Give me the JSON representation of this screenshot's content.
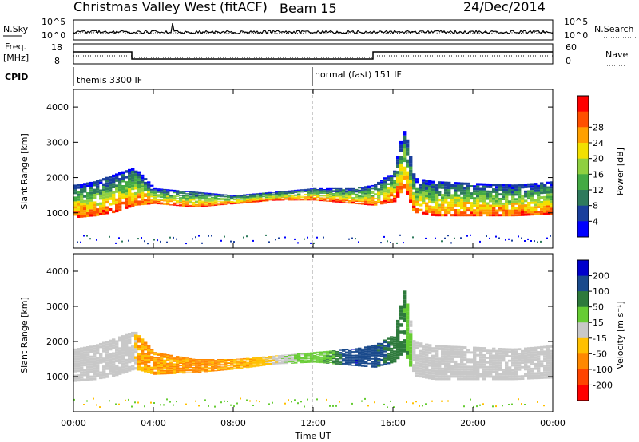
{
  "header": {
    "title": "Christmas Valley West (fitACF)",
    "beam": "Beam 15",
    "date": "24/Dec/2014"
  },
  "strip": {
    "nsky_label": "N.Sky",
    "nsky_ticks": [
      "10^5",
      "10^0"
    ],
    "nsearch_label": "N.Search",
    "nsearch_ticks": [
      "10^5",
      "10^0"
    ],
    "freq_label": "Freq.",
    "freq_unit": "[MHz]",
    "freq_ticks": [
      "18",
      "8"
    ],
    "nave_label": "Nave",
    "nave_ticks": [
      "60",
      "0"
    ],
    "cpid_label": "CPID",
    "cpid_modes": [
      {
        "name": "themis 3300 IF",
        "start_hour": 0
      },
      {
        "name": "normal (fast) 151 IF",
        "start_hour": 12
      }
    ]
  },
  "x_axis": {
    "label": "Time UT",
    "ticks": [
      "00:00",
      "04:00",
      "08:00",
      "12:00",
      "16:00",
      "20:00",
      "00:00"
    ],
    "range_hours": [
      0,
      24
    ]
  },
  "chart_data": [
    {
      "type": "heatmap",
      "name": "power-panel",
      "ylabel": "Slant Range [km]",
      "yticks": [
        "1000",
        "2000",
        "3000",
        "4000"
      ],
      "ylim": [
        0,
        4500
      ],
      "xlim_hours": [
        0,
        24
      ],
      "colorbar": {
        "label": "Power [dB]",
        "ticks": [
          "4",
          "8",
          "12",
          "16",
          "20",
          "24",
          "28"
        ],
        "colors": [
          "#0000ff",
          "#1a3f9c",
          "#2e7a5c",
          "#44aa44",
          "#8fd040",
          "#f2e000",
          "#ffa000",
          "#ff5000",
          "#ff0000"
        ]
      },
      "band_lower_km": [
        [
          0,
          850
        ],
        [
          1,
          900
        ],
        [
          2,
          1000
        ],
        [
          3,
          1200
        ],
        [
          4,
          1250
        ],
        [
          6,
          1150
        ],
        [
          8,
          1250
        ],
        [
          10,
          1350
        ],
        [
          12,
          1350
        ],
        [
          14,
          1250
        ],
        [
          15,
          1200
        ],
        [
          16,
          1300
        ],
        [
          16.5,
          1700
        ],
        [
          17,
          1000
        ],
        [
          18,
          900
        ],
        [
          20,
          900
        ],
        [
          22,
          900
        ],
        [
          24,
          950
        ]
      ],
      "band_upper_km": [
        [
          0,
          1800
        ],
        [
          1,
          1900
        ],
        [
          2,
          2100
        ],
        [
          3,
          2300
        ],
        [
          4,
          1700
        ],
        [
          6,
          1600
        ],
        [
          8,
          1500
        ],
        [
          10,
          1600
        ],
        [
          12,
          1700
        ],
        [
          14,
          1700
        ],
        [
          15,
          1800
        ],
        [
          16,
          2200
        ],
        [
          16.5,
          3500
        ],
        [
          17,
          2000
        ],
        [
          18,
          1900
        ],
        [
          20,
          1850
        ],
        [
          22,
          1800
        ],
        [
          24,
          1900
        ]
      ]
    },
    {
      "type": "heatmap",
      "name": "velocity-panel",
      "ylabel": "Slant Range [km]",
      "yticks": [
        "1000",
        "2000",
        "3000",
        "4000"
      ],
      "ylim": [
        0,
        4500
      ],
      "xlim_hours": [
        0,
        24
      ],
      "colorbar": {
        "label": "Velocity [m s⁻¹]",
        "ticks": [
          "200",
          "100",
          "50",
          "15",
          "-15",
          "-50",
          "-100",
          "-200"
        ],
        "colors": [
          "#0000cc",
          "#1a4a8c",
          "#2e7a3c",
          "#66cc33",
          "#c8c8c8",
          "#ffc000",
          "#ff8800",
          "#ff4400",
          "#ff0000"
        ]
      },
      "band_lower_km": [
        [
          0,
          850
        ],
        [
          1,
          900
        ],
        [
          2,
          1000
        ],
        [
          3,
          1200
        ],
        [
          4,
          1050
        ],
        [
          6,
          1100
        ],
        [
          8,
          1200
        ],
        [
          10,
          1350
        ],
        [
          12,
          1400
        ],
        [
          14,
          1300
        ],
        [
          15,
          1250
        ],
        [
          16,
          1400
        ],
        [
          16.5,
          1700
        ],
        [
          17,
          1000
        ],
        [
          18,
          900
        ],
        [
          20,
          900
        ],
        [
          22,
          900
        ],
        [
          24,
          950
        ]
      ],
      "band_upper_km": [
        [
          0,
          1800
        ],
        [
          1,
          1900
        ],
        [
          2,
          2100
        ],
        [
          3,
          2300
        ],
        [
          4,
          1700
        ],
        [
          6,
          1500
        ],
        [
          8,
          1500
        ],
        [
          10,
          1600
        ],
        [
          12,
          1700
        ],
        [
          14,
          1800
        ],
        [
          15,
          1900
        ],
        [
          16,
          2200
        ],
        [
          16.5,
          3500
        ],
        [
          17,
          2000
        ],
        [
          18,
          1900
        ],
        [
          20,
          1850
        ],
        [
          22,
          1800
        ],
        [
          24,
          1900
        ]
      ],
      "velocity_by_time": [
        [
          0,
          0
        ],
        [
          3,
          0
        ],
        [
          3.2,
          -50
        ],
        [
          6,
          -60
        ],
        [
          9,
          -40
        ],
        [
          11,
          20
        ],
        [
          13,
          50
        ],
        [
          14,
          200
        ],
        [
          15,
          120
        ],
        [
          16.5,
          60
        ],
        [
          17,
          0
        ],
        [
          24,
          0
        ]
      ]
    }
  ]
}
